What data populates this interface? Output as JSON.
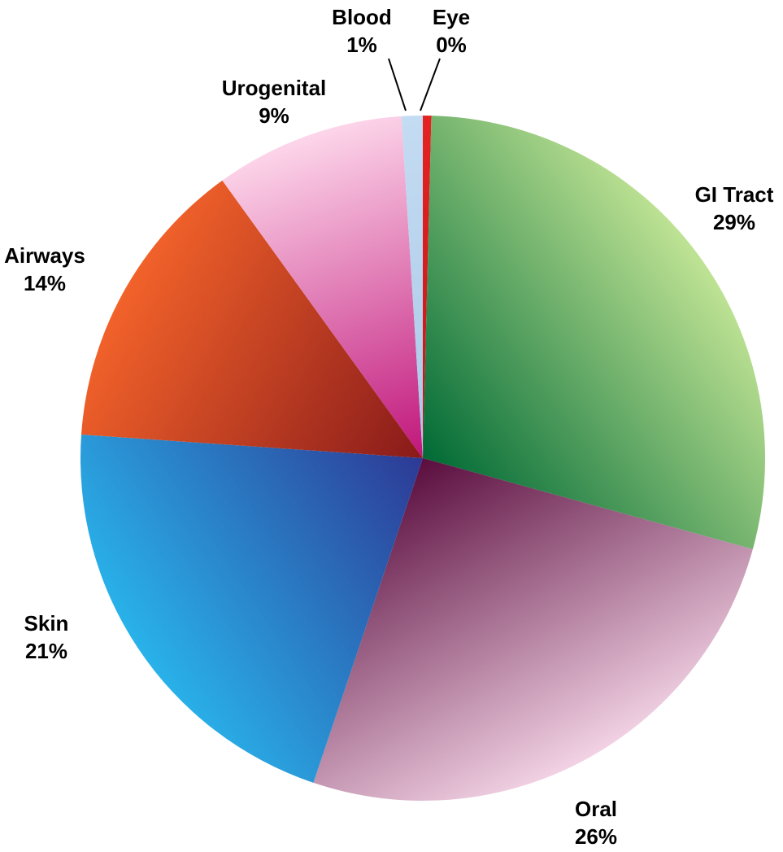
{
  "chart_data": {
    "type": "pie",
    "categories": [
      "Eye",
      "GI Tract",
      "Oral",
      "Skin",
      "Airways",
      "Urogenital",
      "Blood"
    ],
    "values": [
      0.4,
      29,
      26,
      21,
      14,
      9,
      1
    ],
    "value_labels": [
      "0%",
      "29%",
      "26%",
      "21%",
      "14%",
      "9%",
      "1%"
    ],
    "colors": [
      [
        "#e52222",
        "#c01818"
      ],
      [
        "#bfe394",
        "#006a35"
      ],
      [
        "#f2d2e4",
        "#5a0d3e"
      ],
      [
        "#29b2ea",
        "#2c3995"
      ],
      [
        "#f2622a",
        "#881a1a"
      ],
      [
        "#fdd6ea",
        "#c0157a"
      ],
      [
        "#c4dcf2",
        "#a9c8e8"
      ]
    ],
    "start_angle": 0,
    "direction": "clockwise"
  }
}
